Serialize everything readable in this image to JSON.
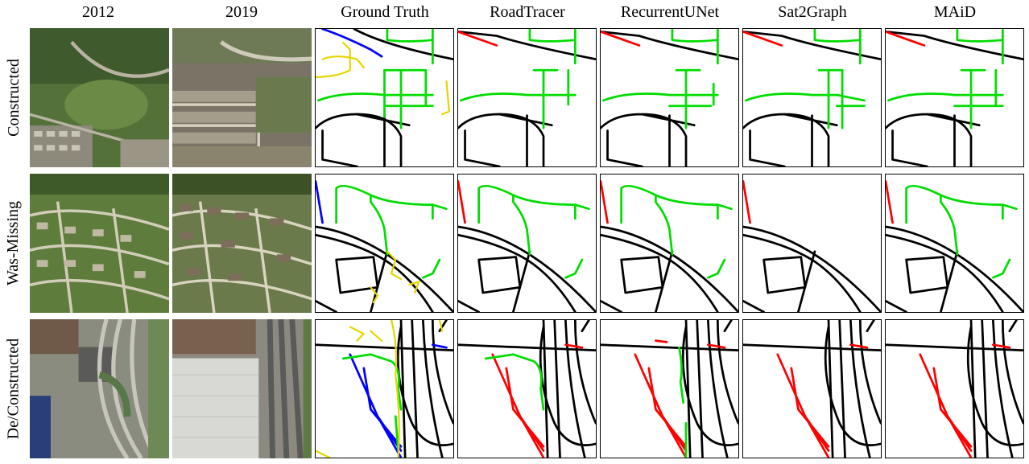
{
  "columns": [
    "2012",
    "2019",
    "Ground Truth",
    "RoadTracer",
    "RecurrentUNet",
    "Sat2Graph",
    "MAiD"
  ],
  "rows": [
    "Constructed",
    "Was-Missing",
    "De/Constructed"
  ],
  "colors": {
    "existing_road": "#000000",
    "constructed_road": "#00dd00",
    "deconstructed_road": "#ff0000",
    "ground_truth_blue": "#0000ff",
    "ground_truth_yellow": "#e6d600",
    "grass_2012": "#5a7a3a",
    "roof_2019": "#8a8070"
  }
}
